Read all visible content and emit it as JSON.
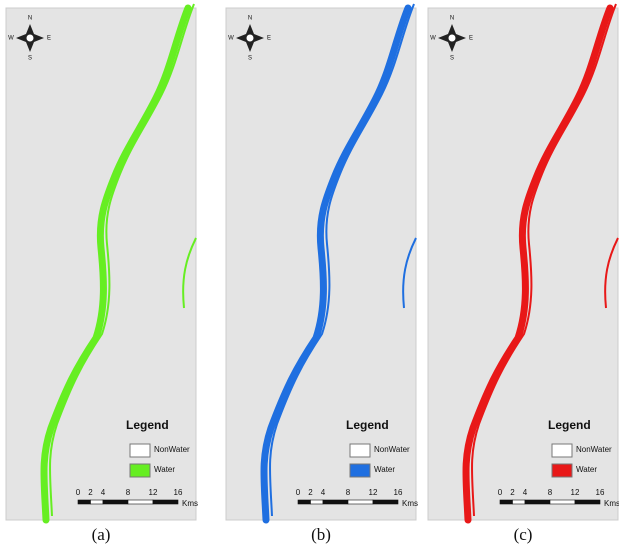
{
  "compass": {
    "n": "N",
    "s": "S",
    "e": "E",
    "w": "W"
  },
  "legend": {
    "title": "Legend",
    "items": [
      "NonWater",
      "Water"
    ]
  },
  "scale": {
    "ticks": [
      0,
      2,
      4,
      8,
      12,
      16
    ],
    "unit": "Kms"
  },
  "panels": [
    {
      "caption": "(a)",
      "color": "#66ee22"
    },
    {
      "caption": "(b)",
      "color": "#1f6fe0"
    },
    {
      "caption": "(c)",
      "color": "#e81818"
    }
  ]
}
